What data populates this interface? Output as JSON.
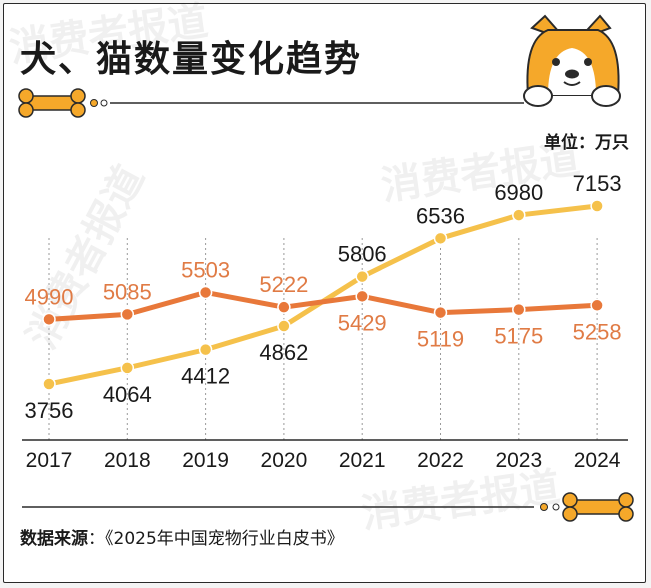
{
  "header": {
    "title": "犬、猫数量变化趋势",
    "unit": "单位：万只"
  },
  "footer": {
    "source_label": "数据来源",
    "source_sep": "：",
    "source_text": "《2025年中国宠物行业白皮书》"
  },
  "watermark": "消费者报道",
  "colors": {
    "dog_line": "#e8783a",
    "cat_line": "#f5c14b",
    "dog_label": "#e07b45",
    "cat_label": "#1a1a1a",
    "bone": "#f5a82a"
  },
  "chart_data": {
    "type": "line",
    "title": "犬、猫数量变化趋势",
    "ylabel": "单位：万只",
    "categories": [
      "2017",
      "2018",
      "2019",
      "2020",
      "2021",
      "2022",
      "2023",
      "2024"
    ],
    "ylim": [
      3500,
      7300
    ],
    "series": [
      {
        "name": "犬",
        "values": [
          4990,
          5085,
          5503,
          5222,
          5429,
          5119,
          5175,
          5258
        ]
      },
      {
        "name": "猫",
        "values": [
          3756,
          4064,
          4412,
          4862,
          5806,
          6536,
          6980,
          7153
        ]
      }
    ]
  }
}
